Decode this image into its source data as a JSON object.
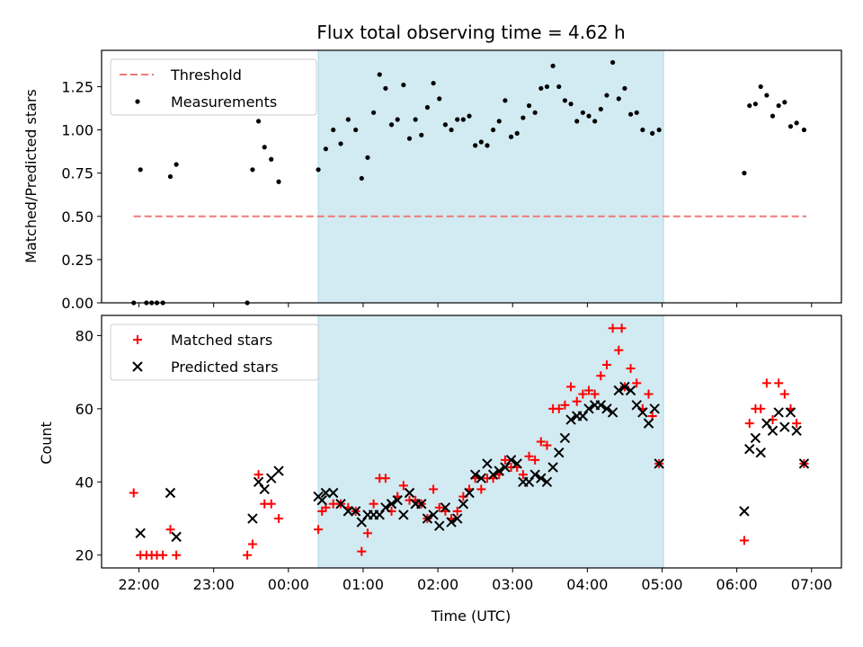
{
  "title": "Flux total observing time = 4.62 h",
  "colors": {
    "shade": "#add8e6",
    "threshold": "#f07878",
    "measurement": "#000000",
    "matched": "#ff0000",
    "predicted": "#000000"
  },
  "chart_data": [
    {
      "type": "scatter",
      "panel": "top",
      "ylabel": "Matched/Predicted stars",
      "xlabel": "",
      "xlim": [
        -0.5,
        9.4
      ],
      "ylim": [
        0,
        1.46
      ],
      "yticks": [
        0.0,
        0.25,
        0.5,
        0.75,
        1.0,
        1.25
      ],
      "ytick_labels": [
        "0.00",
        "0.25",
        "0.50",
        "0.75",
        "1.00",
        "1.25"
      ],
      "xticks": [
        0,
        1,
        2,
        3,
        4,
        5,
        6,
        7,
        8,
        9
      ],
      "shaded_interval": [
        2.4,
        7.02
      ],
      "legend": {
        "placement": "upper left",
        "entries": [
          "Threshold",
          "Measurements"
        ]
      },
      "threshold": {
        "name": "Threshold",
        "value": 0.5,
        "x_range": [
          -0.07,
          8.93
        ]
      },
      "series": [
        {
          "name": "Measurements",
          "points": [
            [
              -0.07,
              0.0
            ],
            [
              0.02,
              0.77
            ],
            [
              0.1,
              0.0
            ],
            [
              0.17,
              0.0
            ],
            [
              0.24,
              0.0
            ],
            [
              0.32,
              0.0
            ],
            [
              0.42,
              0.73
            ],
            [
              0.5,
              0.8
            ],
            [
              1.45,
              0.0
            ],
            [
              1.52,
              0.77
            ],
            [
              1.6,
              1.05
            ],
            [
              1.68,
              0.9
            ],
            [
              1.77,
              0.83
            ],
            [
              1.87,
              0.7
            ],
            [
              2.4,
              0.77
            ],
            [
              2.5,
              0.89
            ],
            [
              2.6,
              1.0
            ],
            [
              2.7,
              0.92
            ],
            [
              2.8,
              1.06
            ],
            [
              2.9,
              1.0
            ],
            [
              2.98,
              0.72
            ],
            [
              3.06,
              0.84
            ],
            [
              3.14,
              1.1
            ],
            [
              3.22,
              1.32
            ],
            [
              3.3,
              1.24
            ],
            [
              3.38,
              1.03
            ],
            [
              3.46,
              1.06
            ],
            [
              3.54,
              1.26
            ],
            [
              3.62,
              0.95
            ],
            [
              3.7,
              1.06
            ],
            [
              3.78,
              0.97
            ],
            [
              3.86,
              1.13
            ],
            [
              3.94,
              1.27
            ],
            [
              4.02,
              1.18
            ],
            [
              4.1,
              1.03
            ],
            [
              4.18,
              1.0
            ],
            [
              4.26,
              1.06
            ],
            [
              4.34,
              1.06
            ],
            [
              4.42,
              1.08
            ],
            [
              4.5,
              0.91
            ],
            [
              4.58,
              0.93
            ],
            [
              4.66,
              0.91
            ],
            [
              4.74,
              1.0
            ],
            [
              4.82,
              1.05
            ],
            [
              4.9,
              1.17
            ],
            [
              4.98,
              0.96
            ],
            [
              5.06,
              0.98
            ],
            [
              5.14,
              1.07
            ],
            [
              5.22,
              1.14
            ],
            [
              5.3,
              1.1
            ],
            [
              5.38,
              1.24
            ],
            [
              5.46,
              1.25
            ],
            [
              5.54,
              1.37
            ],
            [
              5.62,
              1.25
            ],
            [
              5.7,
              1.17
            ],
            [
              5.78,
              1.15
            ],
            [
              5.86,
              1.05
            ],
            [
              5.94,
              1.1
            ],
            [
              6.02,
              1.08
            ],
            [
              6.1,
              1.05
            ],
            [
              6.18,
              1.12
            ],
            [
              6.26,
              1.2
            ],
            [
              6.34,
              1.39
            ],
            [
              6.42,
              1.18
            ],
            [
              6.5,
              1.24
            ],
            [
              6.58,
              1.09
            ],
            [
              6.66,
              1.1
            ],
            [
              6.74,
              1.0
            ],
            [
              6.87,
              0.98
            ],
            [
              6.96,
              1.0
            ],
            [
              8.1,
              0.75
            ],
            [
              8.17,
              1.14
            ],
            [
              8.25,
              1.15
            ],
            [
              8.32,
              1.25
            ],
            [
              8.4,
              1.2
            ],
            [
              8.48,
              1.08
            ],
            [
              8.56,
              1.14
            ],
            [
              8.64,
              1.16
            ],
            [
              8.72,
              1.02
            ],
            [
              8.8,
              1.04
            ],
            [
              8.9,
              1.0
            ]
          ]
        }
      ]
    },
    {
      "type": "scatter",
      "panel": "bottom",
      "ylabel": "Count",
      "xlabel": "Time (UTC)",
      "xlim": [
        -0.5,
        9.4
      ],
      "ylim": [
        16.5,
        85.5
      ],
      "yticks": [
        20,
        40,
        60,
        80
      ],
      "ytick_labels": [
        "20",
        "40",
        "60",
        "80"
      ],
      "xticks": [
        0,
        1,
        2,
        3,
        4,
        5,
        6,
        7,
        8,
        9
      ],
      "xtick_labels": [
        "22:00",
        "23:00",
        "00:00",
        "01:00",
        "02:00",
        "03:00",
        "04:00",
        "05:00",
        "06:00",
        "07:00"
      ],
      "shaded_interval": [
        2.4,
        7.02
      ],
      "legend": {
        "placement": "upper left",
        "entries": [
          "Matched stars",
          "Predicted stars"
        ]
      },
      "series": [
        {
          "name": "Matched stars",
          "marker": "plus",
          "points": [
            [
              -0.07,
              37
            ],
            [
              0.02,
              20
            ],
            [
              0.1,
              20
            ],
            [
              0.17,
              20
            ],
            [
              0.24,
              20
            ],
            [
              0.32,
              20
            ],
            [
              0.42,
              27
            ],
            [
              0.5,
              20
            ],
            [
              1.45,
              20
            ],
            [
              1.52,
              23
            ],
            [
              1.6,
              42
            ],
            [
              1.68,
              34
            ],
            [
              1.77,
              34
            ],
            [
              1.87,
              30
            ],
            [
              2.4,
              27
            ],
            [
              2.45,
              32
            ],
            [
              2.5,
              33
            ],
            [
              2.6,
              34
            ],
            [
              2.7,
              34
            ],
            [
              2.8,
              33
            ],
            [
              2.9,
              32
            ],
            [
              2.98,
              21
            ],
            [
              3.06,
              26
            ],
            [
              3.14,
              34
            ],
            [
              3.22,
              41
            ],
            [
              3.3,
              41
            ],
            [
              3.38,
              32
            ],
            [
              3.46,
              36
            ],
            [
              3.54,
              39
            ],
            [
              3.62,
              35
            ],
            [
              3.7,
              35
            ],
            [
              3.78,
              34
            ],
            [
              3.86,
              30
            ],
            [
              3.94,
              38
            ],
            [
              4.02,
              33
            ],
            [
              4.1,
              32
            ],
            [
              4.18,
              30
            ],
            [
              4.26,
              32
            ],
            [
              4.34,
              36
            ],
            [
              4.42,
              38
            ],
            [
              4.5,
              41
            ],
            [
              4.58,
              38
            ],
            [
              4.66,
              41
            ],
            [
              4.74,
              41
            ],
            [
              4.82,
              42
            ],
            [
              4.9,
              46
            ],
            [
              4.98,
              44
            ],
            [
              5.06,
              44
            ],
            [
              5.14,
              42
            ],
            [
              5.22,
              47
            ],
            [
              5.3,
              46
            ],
            [
              5.38,
              51
            ],
            [
              5.46,
              50
            ],
            [
              5.54,
              60
            ],
            [
              5.62,
              60
            ],
            [
              5.7,
              61
            ],
            [
              5.78,
              66
            ],
            [
              5.86,
              62
            ],
            [
              5.94,
              64
            ],
            [
              6.02,
              65
            ],
            [
              6.1,
              64
            ],
            [
              6.18,
              69
            ],
            [
              6.26,
              72
            ],
            [
              6.34,
              82
            ],
            [
              6.42,
              76
            ],
            [
              6.46,
              82
            ],
            [
              6.5,
              66
            ],
            [
              6.58,
              71
            ],
            [
              6.66,
              67
            ],
            [
              6.74,
              60
            ],
            [
              6.82,
              64
            ],
            [
              6.87,
              58
            ],
            [
              6.96,
              45
            ],
            [
              8.1,
              24
            ],
            [
              8.17,
              56
            ],
            [
              8.25,
              60
            ],
            [
              8.32,
              60
            ],
            [
              8.4,
              67
            ],
            [
              8.48,
              57
            ],
            [
              8.56,
              67
            ],
            [
              8.64,
              64
            ],
            [
              8.72,
              60
            ],
            [
              8.8,
              56
            ],
            [
              8.9,
              45
            ]
          ]
        },
        {
          "name": "Predicted stars",
          "marker": "x",
          "points": [
            [
              0.02,
              26
            ],
            [
              0.42,
              37
            ],
            [
              0.5,
              25
            ],
            [
              1.52,
              30
            ],
            [
              1.6,
              40
            ],
            [
              1.68,
              38
            ],
            [
              1.77,
              41
            ],
            [
              1.87,
              43
            ],
            [
              2.4,
              36
            ],
            [
              2.45,
              35
            ],
            [
              2.5,
              37
            ],
            [
              2.6,
              37
            ],
            [
              2.7,
              34
            ],
            [
              2.8,
              32
            ],
            [
              2.9,
              32
            ],
            [
              2.98,
              29
            ],
            [
              3.06,
              31
            ],
            [
              3.14,
              31
            ],
            [
              3.22,
              31
            ],
            [
              3.3,
              33
            ],
            [
              3.38,
              34
            ],
            [
              3.46,
              35
            ],
            [
              3.54,
              31
            ],
            [
              3.62,
              37
            ],
            [
              3.7,
              34
            ],
            [
              3.78,
              34
            ],
            [
              3.86,
              30
            ],
            [
              3.94,
              31
            ],
            [
              4.02,
              28
            ],
            [
              4.1,
              33
            ],
            [
              4.18,
              29
            ],
            [
              4.26,
              30
            ],
            [
              4.34,
              34
            ],
            [
              4.42,
              37
            ],
            [
              4.5,
              42
            ],
            [
              4.58,
              41
            ],
            [
              4.66,
              45
            ],
            [
              4.74,
              42
            ],
            [
              4.82,
              43
            ],
            [
              4.9,
              44
            ],
            [
              4.98,
              46
            ],
            [
              5.06,
              45
            ],
            [
              5.14,
              40
            ],
            [
              5.22,
              40
            ],
            [
              5.3,
              42
            ],
            [
              5.38,
              41
            ],
            [
              5.46,
              40
            ],
            [
              5.54,
              44
            ],
            [
              5.62,
              48
            ],
            [
              5.7,
              52
            ],
            [
              5.78,
              57
            ],
            [
              5.86,
              58
            ],
            [
              5.94,
              58
            ],
            [
              6.02,
              60
            ],
            [
              6.1,
              61
            ],
            [
              6.18,
              61
            ],
            [
              6.26,
              60
            ],
            [
              6.34,
              59
            ],
            [
              6.42,
              65
            ],
            [
              6.5,
              66
            ],
            [
              6.58,
              65
            ],
            [
              6.66,
              61
            ],
            [
              6.74,
              59
            ],
            [
              6.82,
              56
            ],
            [
              6.9,
              60
            ],
            [
              6.96,
              45
            ],
            [
              8.1,
              32
            ],
            [
              8.17,
              49
            ],
            [
              8.25,
              52
            ],
            [
              8.32,
              48
            ],
            [
              8.4,
              56
            ],
            [
              8.48,
              54
            ],
            [
              8.56,
              59
            ],
            [
              8.64,
              55
            ],
            [
              8.72,
              59
            ],
            [
              8.8,
              54
            ],
            [
              8.9,
              45
            ]
          ]
        }
      ]
    }
  ]
}
